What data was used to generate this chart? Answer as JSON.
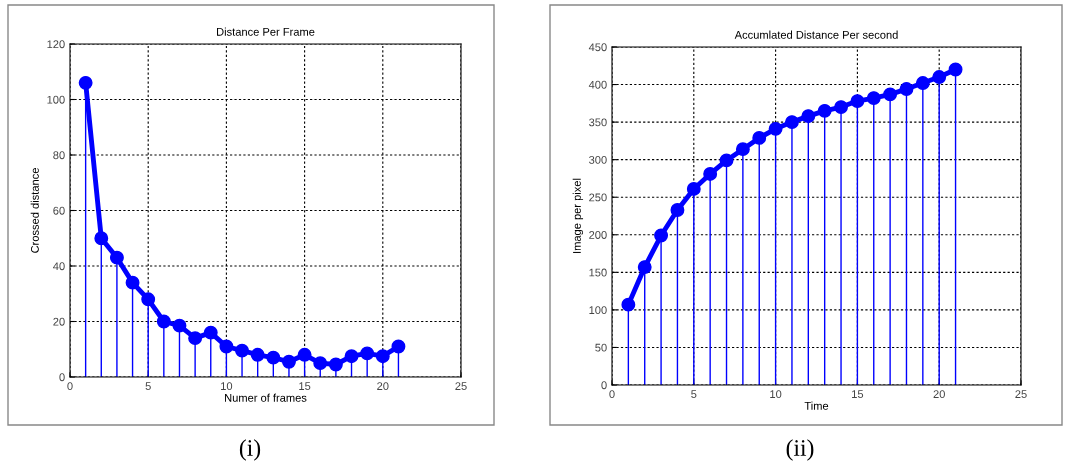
{
  "chart_data": [
    {
      "type": "line",
      "title": "Distance Per Frame",
      "xlabel": "Numer of frames",
      "ylabel": "Crossed distance",
      "x": [
        1,
        2,
        3,
        4,
        5,
        6,
        7,
        8,
        9,
        10,
        11,
        12,
        13,
        14,
        15,
        16,
        17,
        18,
        19,
        20,
        21
      ],
      "series": [
        {
          "type": "lollipop",
          "color": "#0000ff",
          "marker": "circle",
          "values": [
            106,
            50,
            43,
            34,
            28,
            20,
            18.5,
            14,
            16,
            11,
            9.5,
            8,
            7,
            5.5,
            8,
            5,
            4.5,
            7.5,
            8.5,
            7.5,
            11
          ]
        },
        {
          "color": "#0000ff",
          "line_style": "solid",
          "values": [
            106,
            50,
            43,
            34,
            28,
            20,
            18.5,
            14,
            16,
            11,
            9.5,
            8,
            7,
            5.5,
            8,
            5,
            4.5,
            7.5,
            8.5,
            7.5,
            11
          ]
        }
      ],
      "xlim": [
        0,
        25
      ],
      "xticks": [
        0,
        5,
        10,
        15,
        20,
        25
      ],
      "ylim": [
        0,
        120
      ],
      "yticks": [
        0,
        20,
        40,
        60,
        80,
        100,
        120
      ],
      "grid": true,
      "annotations": [
        "(i)"
      ]
    },
    {
      "type": "line",
      "title": "Accumlated Distance Per second",
      "xlabel": "Time",
      "ylabel": "Image per pixel",
      "x": [
        1,
        2,
        3,
        4,
        5,
        6,
        7,
        8,
        9,
        10,
        11,
        12,
        13,
        14,
        15,
        16,
        17,
        18,
        19,
        20,
        21
      ],
      "series": [
        {
          "type": "lollipop",
          "color": "#0000ff",
          "marker": "circle",
          "values": [
            107,
            157,
            199,
            233,
            261,
            281,
            299,
            314,
            329,
            341,
            350,
            358,
            365,
            370,
            378,
            382,
            387,
            394,
            402,
            410,
            420
          ]
        },
        {
          "color": "#0000ff",
          "line_style": "solid",
          "values": [
            107,
            157,
            199,
            233,
            261,
            281,
            299,
            314,
            329,
            341,
            350,
            358,
            365,
            370,
            378,
            382,
            387,
            394,
            402,
            410,
            420
          ]
        }
      ],
      "xlim": [
        0,
        25
      ],
      "xticks": [
        0,
        5,
        10,
        15,
        20,
        25
      ],
      "ylim": [
        0,
        450
      ],
      "yticks": [
        0,
        50,
        100,
        150,
        200,
        250,
        300,
        350,
        400,
        450
      ],
      "grid": true,
      "annotations": [
        "(ii)"
      ]
    }
  ]
}
